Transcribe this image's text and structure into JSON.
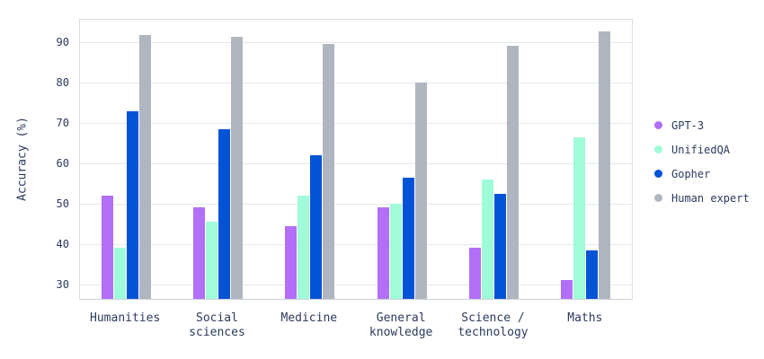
{
  "chart_data": {
    "type": "bar",
    "title": "",
    "xlabel": "",
    "ylabel": "Accuracy (%)",
    "categories": [
      "Humanities",
      "Social sciences",
      "Medicine",
      "General knowledge",
      "Science / technology",
      "Maths"
    ],
    "series": [
      {
        "name": "GPT-3",
        "color": "#B26FF8",
        "values": [
          52,
          49,
          44.5,
          49,
          39,
          31
        ]
      },
      {
        "name": "UnifiedQA",
        "color": "#9FFBD8",
        "values": [
          39,
          45.5,
          52,
          50,
          56,
          66.5
        ]
      },
      {
        "name": "Gopher",
        "color": "#0353D7",
        "values": [
          73,
          68.5,
          62,
          56.5,
          52.5,
          38.5
        ]
      },
      {
        "name": "Human expert",
        "color": "#B0B6C0",
        "values": [
          91.8,
          91.3,
          89.7,
          80.1,
          89.2,
          92.8
        ]
      }
    ],
    "yticks": [
      30,
      40,
      50,
      60,
      70,
      80,
      90
    ],
    "ylim": [
      26.4,
      95.6
    ],
    "grid": true,
    "legend_position": "right",
    "colors": {
      "text": "#2B3A5C",
      "gridline": "#E3E8EF",
      "plot_border": "#D9DEE6",
      "axis_line": "#CBD1DB",
      "background": "#FFFFFF"
    }
  }
}
